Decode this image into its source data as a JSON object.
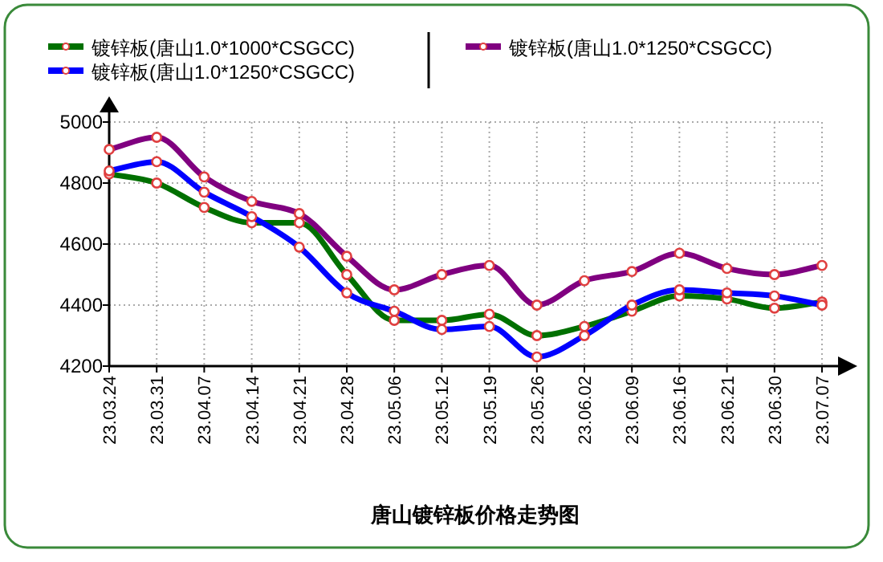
{
  "chart_data": {
    "type": "line",
    "title": "唐山镀锌板价格走势图",
    "categories": [
      "23.03.24",
      "23.03.31",
      "23.04.07",
      "23.04.14",
      "23.04.21",
      "23.04.28",
      "23.05.06",
      "23.05.12",
      "23.05.19",
      "23.05.26",
      "23.06.02",
      "23.06.09",
      "23.06.16",
      "23.06.21",
      "23.06.30",
      "23.07.07"
    ],
    "series": [
      {
        "name": "镀锌板(唐山1.0*1000*CSGCC)",
        "color": "#007000",
        "values": [
          4830,
          4800,
          4720,
          4670,
          4670,
          4500,
          4350,
          4350,
          4370,
          4300,
          4330,
          4380,
          4430,
          4420,
          4390,
          4410
        ]
      },
      {
        "name": "镀锌板(唐山1.0*1250*CSGCC)",
        "color": "#0000ff",
        "values": [
          4840,
          4870,
          4770,
          4690,
          4590,
          4440,
          4380,
          4320,
          4330,
          4230,
          4300,
          4400,
          4450,
          4440,
          4430,
          4400
        ]
      },
      {
        "name": "镀锌板(唐山1.0*1250*CSGCC)",
        "color": "#800080",
        "values": [
          4910,
          4950,
          4820,
          4740,
          4700,
          4560,
          4450,
          4500,
          4530,
          4400,
          4480,
          4510,
          4570,
          4520,
          4500,
          4530
        ]
      }
    ],
    "ylim": [
      4200,
      5000
    ],
    "yticks": [
      4200,
      4400,
      4600,
      4800,
      5000
    ],
    "grid": true,
    "legend": "top",
    "marker": "circle",
    "line_style": "solid"
  }
}
